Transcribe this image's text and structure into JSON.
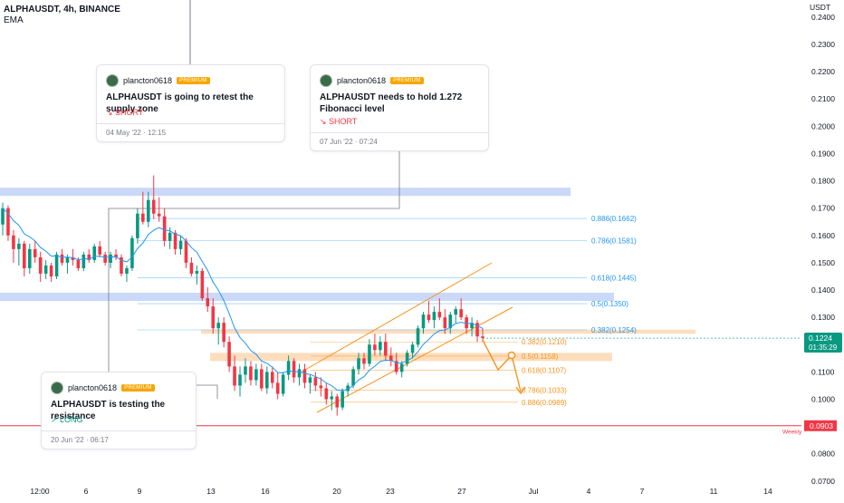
{
  "header": {
    "symbol": "ALPHAUSDT, 4h, BINANCE",
    "indicator": "EMA"
  },
  "colors": {
    "up": "#089981",
    "down": "#f23645",
    "ema": "#2196f3",
    "zone_blue": "#b8ccf5",
    "zone_orange": "#fbd3a8",
    "fib": "#2196f3",
    "fib_orange": "#f7931e",
    "weekly_line": "#f23645",
    "price_tag": "#089981"
  },
  "chart_data": {
    "type": "candlestick",
    "symbol": "ALPHAUSDT",
    "timeframe": "4h",
    "exchange": "BINANCE",
    "indicator": "EMA",
    "y_unit": "USDT",
    "y_ticks": [
      "0.2400",
      "0.2300",
      "0.2200",
      "0.2100",
      "0.2000",
      "0.1900",
      "0.1800",
      "0.1700",
      "0.1600",
      "0.1500",
      "0.1400",
      "0.1300",
      "0.1100",
      "0.1000",
      "0.0800",
      "0.0700"
    ],
    "x_ticks": [
      "12:00",
      "6",
      "9",
      "13",
      "16",
      "20",
      "23",
      "27",
      "Jul",
      "4",
      "7",
      "11",
      "14"
    ],
    "ylim": [
      0.0697,
      0.243
    ],
    "last_price": "0.1224",
    "countdown": "01:35:29",
    "ohlc": [
      [
        0.164,
        0.172,
        0.16,
        0.17
      ],
      [
        0.17,
        0.171,
        0.158,
        0.16
      ],
      [
        0.16,
        0.162,
        0.15,
        0.155
      ],
      [
        0.155,
        0.159,
        0.149,
        0.157
      ],
      [
        0.157,
        0.158,
        0.145,
        0.148
      ],
      [
        0.148,
        0.157,
        0.146,
        0.155
      ],
      [
        0.155,
        0.158,
        0.15,
        0.152
      ],
      [
        0.152,
        0.154,
        0.143,
        0.146
      ],
      [
        0.146,
        0.151,
        0.144,
        0.149
      ],
      [
        0.149,
        0.15,
        0.143,
        0.145
      ],
      [
        0.145,
        0.154,
        0.144,
        0.153
      ],
      [
        0.153,
        0.155,
        0.149,
        0.15
      ],
      [
        0.15,
        0.153,
        0.146,
        0.152
      ],
      [
        0.152,
        0.155,
        0.149,
        0.151
      ],
      [
        0.151,
        0.152,
        0.147,
        0.148
      ],
      [
        0.148,
        0.154,
        0.147,
        0.153
      ],
      [
        0.153,
        0.155,
        0.15,
        0.151
      ],
      [
        0.151,
        0.157,
        0.15,
        0.156
      ],
      [
        0.156,
        0.158,
        0.152,
        0.153
      ],
      [
        0.153,
        0.154,
        0.149,
        0.15
      ],
      [
        0.15,
        0.154,
        0.148,
        0.153
      ],
      [
        0.153,
        0.155,
        0.151,
        0.152
      ],
      [
        0.152,
        0.153,
        0.145,
        0.146
      ],
      [
        0.146,
        0.149,
        0.143,
        0.148
      ],
      [
        0.148,
        0.16,
        0.147,
        0.159
      ],
      [
        0.159,
        0.17,
        0.157,
        0.168
      ],
      [
        0.168,
        0.176,
        0.164,
        0.165
      ],
      [
        0.165,
        0.176,
        0.163,
        0.173
      ],
      [
        0.173,
        0.182,
        0.166,
        0.168
      ],
      [
        0.168,
        0.174,
        0.165,
        0.167
      ],
      [
        0.167,
        0.17,
        0.156,
        0.158
      ],
      [
        0.158,
        0.163,
        0.155,
        0.161
      ],
      [
        0.161,
        0.162,
        0.153,
        0.155
      ],
      [
        0.155,
        0.16,
        0.153,
        0.158
      ],
      [
        0.158,
        0.159,
        0.148,
        0.15
      ],
      [
        0.15,
        0.152,
        0.145,
        0.146
      ],
      [
        0.146,
        0.149,
        0.142,
        0.147
      ],
      [
        0.147,
        0.148,
        0.136,
        0.137
      ],
      [
        0.137,
        0.141,
        0.132,
        0.134
      ],
      [
        0.134,
        0.137,
        0.124,
        0.126
      ],
      [
        0.126,
        0.13,
        0.12,
        0.128
      ],
      [
        0.128,
        0.13,
        0.119,
        0.121
      ],
      [
        0.121,
        0.123,
        0.11,
        0.112
      ],
      [
        0.112,
        0.116,
        0.103,
        0.105
      ],
      [
        0.105,
        0.112,
        0.101,
        0.109
      ],
      [
        0.109,
        0.115,
        0.106,
        0.112
      ],
      [
        0.112,
        0.114,
        0.105,
        0.107
      ],
      [
        0.107,
        0.113,
        0.105,
        0.111
      ],
      [
        0.111,
        0.113,
        0.103,
        0.104
      ],
      [
        0.104,
        0.112,
        0.102,
        0.11
      ],
      [
        0.11,
        0.112,
        0.104,
        0.106
      ],
      [
        0.106,
        0.11,
        0.1,
        0.102
      ],
      [
        0.102,
        0.11,
        0.101,
        0.109
      ],
      [
        0.109,
        0.116,
        0.107,
        0.114
      ],
      [
        0.114,
        0.115,
        0.106,
        0.108
      ],
      [
        0.108,
        0.113,
        0.105,
        0.111
      ],
      [
        0.111,
        0.113,
        0.104,
        0.106
      ],
      [
        0.106,
        0.109,
        0.102,
        0.108
      ],
      [
        0.108,
        0.11,
        0.103,
        0.105
      ],
      [
        0.105,
        0.108,
        0.101,
        0.104
      ],
      [
        0.104,
        0.106,
        0.098,
        0.1
      ],
      [
        0.1,
        0.103,
        0.096,
        0.101
      ],
      [
        0.101,
        0.102,
        0.094,
        0.097
      ],
      [
        0.097,
        0.104,
        0.096,
        0.103
      ],
      [
        0.103,
        0.106,
        0.101,
        0.105
      ],
      [
        0.105,
        0.112,
        0.104,
        0.111
      ],
      [
        0.111,
        0.117,
        0.109,
        0.115
      ],
      [
        0.115,
        0.117,
        0.111,
        0.113
      ],
      [
        0.113,
        0.122,
        0.112,
        0.12
      ],
      [
        0.12,
        0.124,
        0.116,
        0.118
      ],
      [
        0.118,
        0.123,
        0.116,
        0.121
      ],
      [
        0.121,
        0.124,
        0.114,
        0.116
      ],
      [
        0.116,
        0.119,
        0.112,
        0.114
      ],
      [
        0.114,
        0.117,
        0.109,
        0.11
      ],
      [
        0.11,
        0.114,
        0.108,
        0.113
      ],
      [
        0.113,
        0.118,
        0.112,
        0.117
      ],
      [
        0.117,
        0.121,
        0.115,
        0.12
      ],
      [
        0.12,
        0.127,
        0.119,
        0.126
      ],
      [
        0.126,
        0.132,
        0.124,
        0.131
      ],
      [
        0.131,
        0.136,
        0.128,
        0.129
      ],
      [
        0.129,
        0.134,
        0.126,
        0.132
      ],
      [
        0.132,
        0.137,
        0.129,
        0.13
      ],
      [
        0.13,
        0.133,
        0.124,
        0.126
      ],
      [
        0.126,
        0.132,
        0.124,
        0.131
      ],
      [
        0.131,
        0.134,
        0.128,
        0.133
      ],
      [
        0.133,
        0.137,
        0.129,
        0.13
      ],
      [
        0.13,
        0.131,
        0.124,
        0.126
      ],
      [
        0.126,
        0.13,
        0.123,
        0.128
      ],
      [
        0.128,
        0.129,
        0.121,
        0.123
      ],
      [
        0.123,
        0.126,
        0.121,
        0.1224
      ]
    ],
    "ema": "EMA line follows price closes",
    "zones": [
      {
        "color": "blue",
        "top": 0.1775,
        "bottom": 0.1745
      },
      {
        "color": "blue",
        "top": 0.139,
        "bottom": 0.136
      },
      {
        "color": "orange",
        "top": 0.1255,
        "bottom": 0.124
      },
      {
        "color": "orange",
        "top": 0.117,
        "bottom": 0.114
      }
    ],
    "fib_upper": [
      {
        "label": "0.886(0.1662)",
        "value": 0.1662
      },
      {
        "label": "0.786(0.1581)",
        "value": 0.1581
      },
      {
        "label": "0.618(0.1445)",
        "value": 0.1445
      },
      {
        "label": "0.5(0.1350)",
        "value": 0.135
      },
      {
        "label": "0.382(0.1254)",
        "value": 0.1254
      }
    ],
    "fib_lower": [
      {
        "label": "0.382(0.1210)",
        "value": 0.121
      },
      {
        "label": "0.5(0.1158)",
        "value": 0.1158
      },
      {
        "label": "0.618(0.1107)",
        "value": 0.1107
      },
      {
        "label": "0.786(0.1033)",
        "value": 0.1033
      },
      {
        "label": "0.886(0.0989)",
        "value": 0.0989
      }
    ],
    "weekly_level": {
      "label": "Weekly",
      "value": 0.0903,
      "price_text": "0.0903"
    }
  },
  "ideas": [
    {
      "author": "plancton0618",
      "badge": "PREMIUM",
      "title": "ALPHAUSDT is going to retest the supply zone",
      "direction": "↘ SHORT",
      "date": "04 May '22 · 12:15"
    },
    {
      "author": "plancton0618",
      "badge": "PREMIUM",
      "title": "ALPHAUSDT needs to hold 1.272 Fibonacci level",
      "direction": "↘ SHORT",
      "date": "07 Jun '22 · 07:24"
    },
    {
      "author": "plancton0618",
      "badge": "PREMIUM",
      "title": "ALPHAUSDT is testing the resistance",
      "direction": "↗ LONG",
      "date": "20 Jun '22 · 06:17"
    }
  ]
}
